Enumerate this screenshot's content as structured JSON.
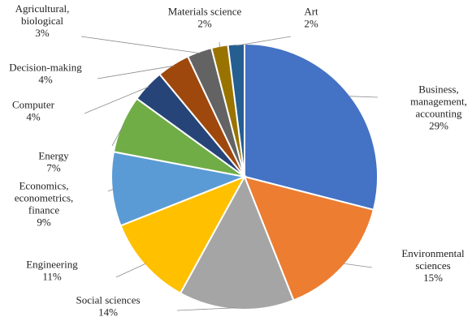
{
  "chart_data": {
    "type": "pie",
    "start_angle_deg": 0,
    "direction": "clockwise",
    "legend": "none",
    "slices": [
      {
        "name": [
          "Business,",
          "management,",
          "accounting"
        ],
        "value": 29,
        "label": "29%",
        "color": "#4472C4"
      },
      {
        "name": [
          "Environmental",
          "sciences"
        ],
        "value": 15,
        "label": "15%",
        "color": "#ED7D31"
      },
      {
        "name": [
          "Social sciences"
        ],
        "value": 14,
        "label": "14%",
        "color": "#A5A5A5"
      },
      {
        "name": [
          "Engineering"
        ],
        "value": 11,
        "label": "11%",
        "color": "#FFC000"
      },
      {
        "name": [
          "Economics,",
          "econometrics,",
          "finance"
        ],
        "value": 9,
        "label": "9%",
        "color": "#5B9BD5"
      },
      {
        "name": [
          "Energy"
        ],
        "value": 7,
        "label": "7%",
        "color": "#70AD47"
      },
      {
        "name": [
          "Computer"
        ],
        "value": 4,
        "label": "4%",
        "color": "#264478"
      },
      {
        "name": [
          "Decision-making"
        ],
        "value": 4,
        "label": "4%",
        "color": "#9E480E"
      },
      {
        "name": [
          "Agricultural,",
          "biological"
        ],
        "value": 3,
        "label": "3%",
        "color": "#636363"
      },
      {
        "name": [
          "Materials science"
        ],
        "value": 2,
        "label": "2%",
        "color": "#997300"
      },
      {
        "name": [
          "Art"
        ],
        "value": 2,
        "label": "2%",
        "color": "#255E91"
      }
    ]
  }
}
